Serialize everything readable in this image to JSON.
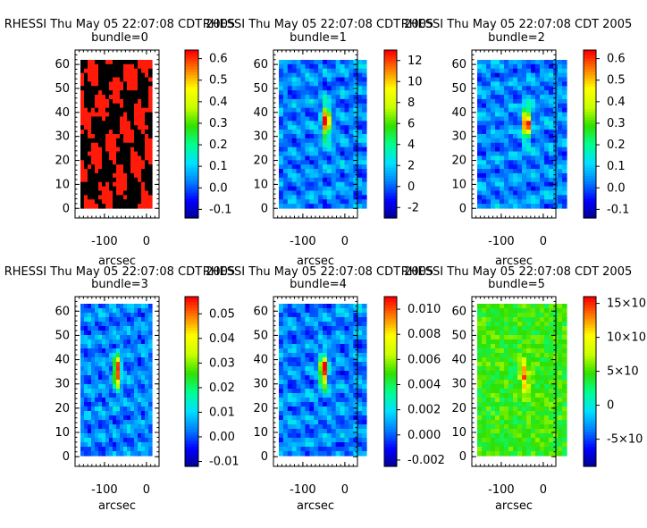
{
  "window": {
    "background": "#ffffff"
  },
  "chart_data": [
    {
      "type": "heatmap",
      "title_line1": "RHESSI Thu May 05 22:07:08 CDT 2005",
      "title_line2": "bundle=0",
      "xlabel": "arcsec",
      "x_ticks": [
        "-100",
        "0"
      ],
      "y_ticks": [
        "0",
        "10",
        "20",
        "30",
        "40",
        "50",
        "60"
      ],
      "colorbar_ticks": [
        "-0.1",
        "0.0",
        "0.1",
        "0.2",
        "0.3",
        "0.4",
        "0.5",
        "0.6"
      ],
      "colorbar_range": [
        -0.14,
        0.64
      ],
      "pattern": "binary",
      "colors": {
        "high": "#ff1a0a",
        "low": "#000000"
      }
    },
    {
      "type": "heatmap",
      "title_line1": "RHESSI Thu May 05 22:07:08 CDT 2005",
      "title_line2": "bundle=1",
      "xlabel": "arcsec",
      "x_ticks": [
        "-100",
        "0"
      ],
      "y_ticks": [
        "0",
        "10",
        "20",
        "30",
        "40",
        "50",
        "60"
      ],
      "colorbar_ticks": [
        "-2",
        "0",
        "2",
        "4",
        "6",
        "8",
        "10",
        "12"
      ],
      "colorbar_range": [
        -3,
        13
      ],
      "pattern": "source",
      "source": {
        "x": -60,
        "y": 37
      }
    },
    {
      "type": "heatmap",
      "title_line1": "RHESSI Thu May 05 22:07:08 CDT 2005",
      "title_line2": "bundle=2",
      "xlabel": "arcsec",
      "x_ticks": [
        "-100",
        "0"
      ],
      "y_ticks": [
        "0",
        "10",
        "20",
        "30",
        "40",
        "50",
        "60"
      ],
      "colorbar_ticks": [
        "-0.1",
        "0.0",
        "0.1",
        "0.2",
        "0.3",
        "0.4",
        "0.5",
        "0.6"
      ],
      "colorbar_range": [
        -0.14,
        0.64
      ],
      "pattern": "source",
      "source": {
        "x": -58,
        "y": 36
      }
    },
    {
      "type": "heatmap",
      "title_line1": "RHESSI Thu May 05 22:07:08 CDT 2005",
      "title_line2": "bundle=3",
      "xlabel": "arcsec",
      "x_ticks": [
        "-100",
        "0"
      ],
      "y_ticks": [
        "0",
        "10",
        "20",
        "30",
        "40",
        "50",
        "60"
      ],
      "colorbar_ticks": [
        "-0.01",
        "0.00",
        "0.01",
        "0.02",
        "0.03",
        "0.04",
        "0.05"
      ],
      "colorbar_range": [
        -0.012,
        0.057
      ],
      "pattern": "source",
      "source": {
        "x": -65,
        "y": 35
      }
    },
    {
      "type": "heatmap",
      "title_line1": "RHESSI Thu May 05 22:07:08 CDT 2005",
      "title_line2": "bundle=4",
      "xlabel": "arcsec",
      "x_ticks": [
        "-100",
        "0"
      ],
      "y_ticks": [
        "0",
        "10",
        "20",
        "30",
        "40",
        "50",
        "60"
      ],
      "colorbar_ticks": [
        "-0.002",
        "0.000",
        "0.002",
        "0.004",
        "0.006",
        "0.008",
        "0.010"
      ],
      "colorbar_range": [
        -0.0025,
        0.011
      ],
      "pattern": "source",
      "source": {
        "x": -65,
        "y": 35
      }
    },
    {
      "type": "heatmap",
      "title_line1": "RHESSI Thu May 05 22:07:08 CDT 2005",
      "title_line2": "bundle=5",
      "xlabel": "arcsec",
      "x_ticks": [
        "-100",
        "0"
      ],
      "y_ticks": [
        "0",
        "10",
        "20",
        "30",
        "40",
        "50",
        "60"
      ],
      "colorbar_ticks": [
        "15×10",
        "10×10",
        "5×10",
        "0",
        "-5×10"
      ],
      "colorbar_range": [
        -9,
        16
      ],
      "colorbar_tick_values": [
        15,
        10,
        5,
        0,
        -5
      ],
      "pattern": "noisy",
      "source": {
        "x": -62,
        "y": 33
      }
    }
  ],
  "colormap": [
    "#00008b",
    "#0000ff",
    "#0080ff",
    "#00e0ff",
    "#00ff90",
    "#30e000",
    "#c8ff00",
    "#ffff00",
    "#ff8000",
    "#ff0000"
  ]
}
